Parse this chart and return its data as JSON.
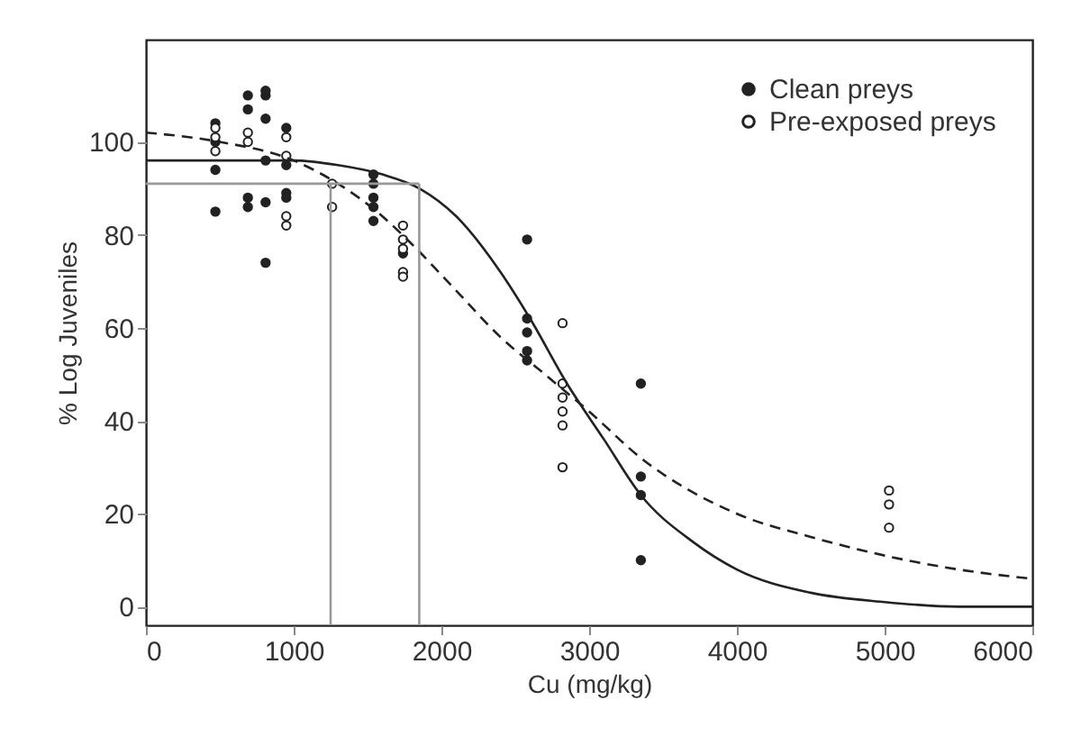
{
  "chart_data": {
    "type": "scatter",
    "xlabel": "Cu (mg/kg)",
    "ylabel": "% Log Juveniles",
    "xlim": [
      0,
      6000
    ],
    "ylim": [
      -4,
      122
    ],
    "xticks": [
      0,
      1000,
      2000,
      3000,
      4000,
      5000,
      6000
    ],
    "yticks": [
      0,
      20,
      40,
      60,
      80,
      100
    ],
    "grid": false,
    "legend": "top right",
    "series": [
      {
        "name": "Clean preys",
        "marker": "circle",
        "color": "#222222",
        "x": [
          470,
          470,
          470,
          470,
          690,
          690,
          690,
          690,
          810,
          810,
          810,
          810,
          810,
          810,
          950,
          950,
          950,
          950,
          1540,
          1540,
          1540,
          1540,
          1540,
          1740,
          2580,
          2580,
          2580,
          2580,
          2580,
          3350,
          3350,
          3350,
          3350
        ],
        "values": [
          94,
          85,
          104,
          100,
          110,
          107,
          88,
          86,
          111,
          110,
          105,
          96,
          87,
          74,
          103,
          95,
          89,
          88,
          93,
          91,
          88,
          86,
          83,
          76,
          79,
          62,
          59,
          55,
          53,
          48,
          28,
          24,
          10
        ]
      },
      {
        "name": "Pre-exposed preys",
        "marker": "circle",
        "color": "#222222",
        "x": [
          470,
          470,
          470,
          690,
          690,
          950,
          950,
          950,
          950,
          1260,
          1260,
          1740,
          1740,
          1740,
          1740,
          1740,
          2820,
          2820,
          2820,
          2820,
          2820,
          2820,
          5030,
          5030,
          5030
        ],
        "values": [
          103,
          101,
          98,
          102,
          100,
          101,
          97,
          84,
          82,
          91,
          86,
          82,
          79,
          77,
          72,
          71,
          61,
          48,
          45,
          42,
          39,
          30,
          25,
          22,
          17
        ]
      },
      {
        "type": "line",
        "marker": "none",
        "color": "#222222",
        "line_style": "solid",
        "x": [
          0,
          500,
          1000,
          1300,
          1600,
          1850,
          2100,
          2400,
          2600,
          2850,
          3100,
          3350,
          3700,
          4000,
          4500,
          5000,
          5500,
          6000
        ],
        "values": [
          96,
          96,
          96,
          95,
          93,
          90,
          84,
          72,
          62,
          48,
          36,
          24,
          14,
          8,
          3,
          1,
          0,
          0
        ]
      },
      {
        "type": "line",
        "marker": "none",
        "color": "#222222",
        "line_style": "dashed",
        "x": [
          0,
          500,
          1000,
          1300,
          1600,
          1800,
          2100,
          2400,
          2700,
          3000,
          3350,
          4000,
          4500,
          5000,
          5500,
          6000
        ],
        "values": [
          102,
          100,
          96,
          91,
          84,
          78,
          68,
          58,
          50,
          42,
          32,
          20,
          15,
          11,
          8,
          6
        ]
      }
    ],
    "ref_lines": [
      {
        "axis": "x",
        "value": 1250,
        "color": "#999999"
      },
      {
        "axis": "x",
        "value": 1850,
        "color": "#999999"
      },
      {
        "axis": "y",
        "value": 91,
        "color": "#999999"
      }
    ]
  }
}
